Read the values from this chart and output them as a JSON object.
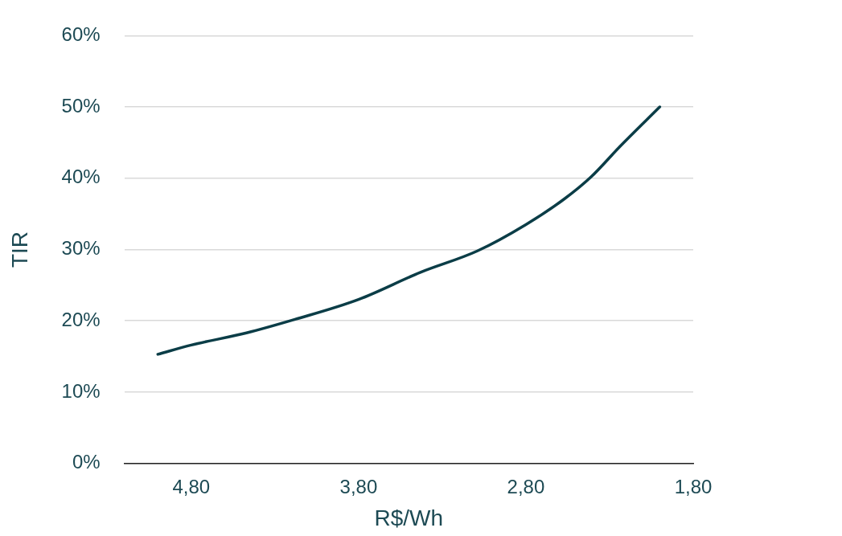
{
  "chart_data": {
    "type": "line",
    "xlabel": "R$/Wh",
    "ylabel": "TIR",
    "xlim": [
      5.2,
      1.8
    ],
    "xticks": [
      {
        "value": 4.8,
        "label": "4,80"
      },
      {
        "value": 3.8,
        "label": "3,80"
      },
      {
        "value": 2.8,
        "label": "2,80"
      },
      {
        "value": 1.8,
        "label": "1,80"
      }
    ],
    "ylim": [
      0,
      60
    ],
    "yticks": [
      {
        "value": 0,
        "label": "0%"
      },
      {
        "value": 10,
        "label": "10%"
      },
      {
        "value": 20,
        "label": "20%"
      },
      {
        "value": 30,
        "label": "30%"
      },
      {
        "value": 40,
        "label": "40%"
      },
      {
        "value": 50,
        "label": "50%"
      },
      {
        "value": 60,
        "label": "60%"
      }
    ],
    "grid": "y",
    "legend": false,
    "marker": "none",
    "line_style": "solid",
    "series": [
      {
        "color": "#0b3d47",
        "x": [
          5.0,
          4.8,
          4.47,
          4.18,
          3.8,
          3.43,
          3.09,
          2.8,
          2.57,
          2.41,
          2.24,
          2.0
        ],
        "values": [
          15.3,
          16.6,
          18.3,
          20.2,
          23.0,
          26.8,
          29.8,
          33.5,
          37.1,
          40.2,
          44.4,
          50.0
        ]
      }
    ]
  }
}
